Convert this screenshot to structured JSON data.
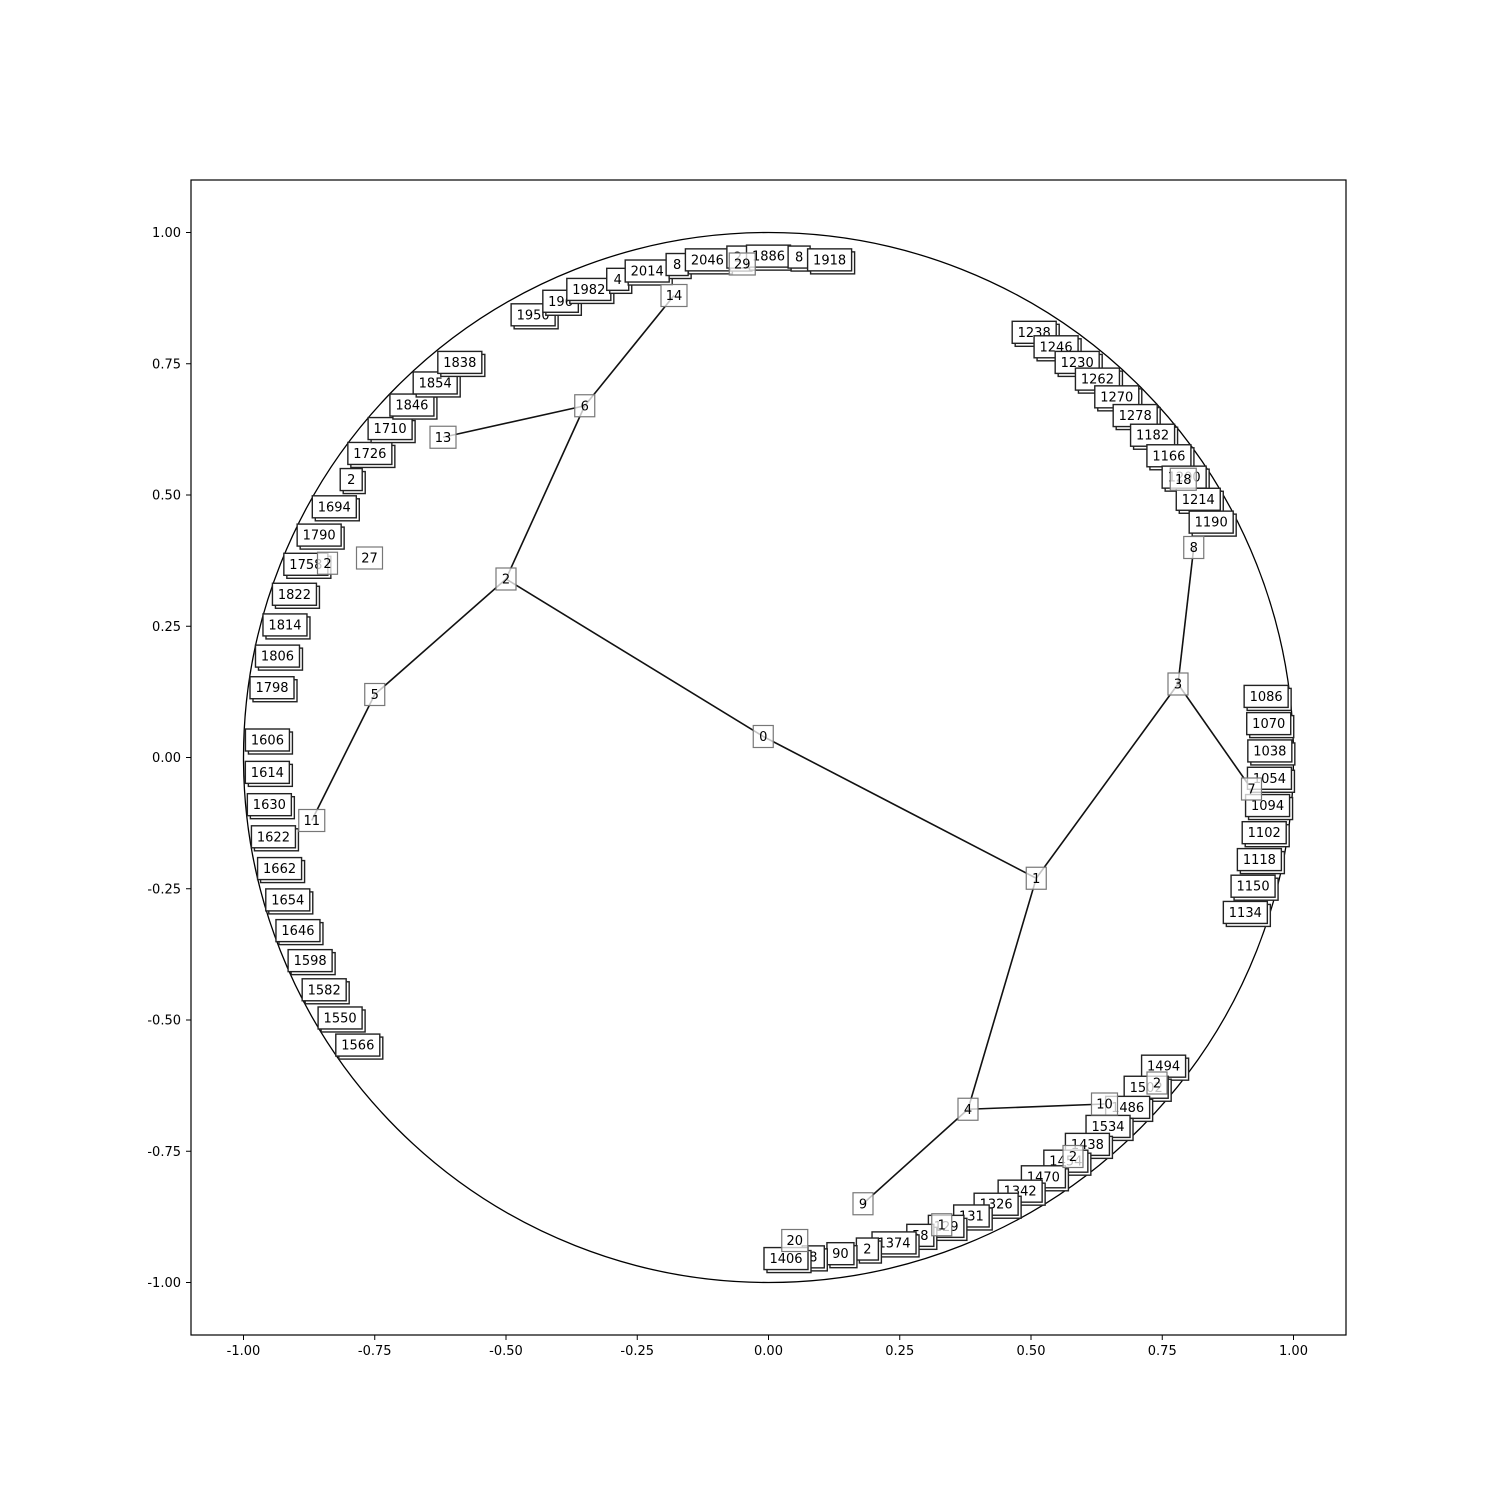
{
  "chart_data": {
    "type": "network",
    "title": "",
    "xlabel": "",
    "ylabel": "",
    "xlim": [
      -1.1,
      1.1
    ],
    "ylim": [
      -1.1,
      1.1
    ],
    "x_ticks": [
      "-1.00",
      "-0.75",
      "-0.50",
      "-0.25",
      "0.00",
      "0.25",
      "0.50",
      "0.75",
      "1.00"
    ],
    "y_ticks": [
      "1.00",
      "0.75",
      "0.50",
      "0.25",
      "0.00",
      "-0.25",
      "-0.50",
      "-0.75",
      "-1.00"
    ],
    "boundary_circle": {
      "center": [
        0,
        0
      ],
      "radius": 1.0
    },
    "internal_nodes": [
      {
        "label": "0",
        "x": -0.01,
        "y": 0.04
      },
      {
        "label": "1",
        "x": 0.51,
        "y": -0.23
      },
      {
        "label": "2",
        "x": -0.5,
        "y": 0.34
      },
      {
        "label": "3",
        "x": 0.78,
        "y": 0.14
      },
      {
        "label": "4",
        "x": 0.38,
        "y": -0.67
      },
      {
        "label": "5",
        "x": -0.75,
        "y": 0.12
      },
      {
        "label": "6",
        "x": -0.35,
        "y": 0.67
      },
      {
        "label": "7",
        "x": 0.92,
        "y": -0.06
      },
      {
        "label": "8",
        "x": 0.81,
        "y": 0.4
      },
      {
        "label": "9",
        "x": 0.18,
        "y": -0.85
      },
      {
        "label": "10",
        "x": 0.64,
        "y": -0.66
      },
      {
        "label": "11",
        "x": -0.87,
        "y": -0.12
      },
      {
        "label": "13",
        "x": -0.62,
        "y": 0.61
      },
      {
        "label": "14",
        "x": -0.18,
        "y": 0.88
      },
      {
        "label": "20",
        "x": 0.05,
        "y": -0.92
      },
      {
        "label": "27",
        "x": -0.76,
        "y": 0.38
      },
      {
        "label": "18",
        "x": 0.79,
        "y": 0.53
      },
      {
        "label": "2",
        "x": 0.74,
        "y": -0.62
      },
      {
        "label": "2",
        "x": 0.58,
        "y": -0.76
      },
      {
        "label": "2",
        "x": -0.84,
        "y": 0.37
      },
      {
        "label": "29",
        "x": -0.05,
        "y": 0.94
      },
      {
        "label": "1",
        "x": 0.33,
        "y": -0.89
      }
    ],
    "edges": [
      [
        "0",
        "1"
      ],
      [
        "0",
        "2"
      ],
      [
        "1",
        "3"
      ],
      [
        "1",
        "4"
      ],
      [
        "2",
        "5"
      ],
      [
        "2",
        "6"
      ],
      [
        "3",
        "7"
      ],
      [
        "3",
        "8"
      ],
      [
        "4",
        "9"
      ],
      [
        "4",
        "10"
      ],
      [
        "5",
        "11"
      ],
      [
        "6",
        "13"
      ],
      [
        "6",
        "14"
      ]
    ],
    "leaf_labels": [
      "1950",
      "196",
      "1982",
      "4",
      "2014",
      "8",
      "2046",
      "2",
      "1886",
      "8",
      "1918",
      "1798",
      "1806",
      "1814",
      "1822",
      "1758",
      "1790",
      "1694",
      "2",
      "1726",
      "1710",
      "1846",
      "1854",
      "1838",
      "1566",
      "1550",
      "1582",
      "1598",
      "1646",
      "1654",
      "1662",
      "1622",
      "1630",
      "1614",
      "1606",
      "1238",
      "1246",
      "1230",
      "1262",
      "1270",
      "1278",
      "1182",
      "1166",
      "1200",
      "1214",
      "1190",
      "1086",
      "1070",
      "1038",
      "1054",
      "1094",
      "1102",
      "1118",
      "1150",
      "1134",
      "1494",
      "1502",
      "1486",
      "1534",
      "1438",
      "1454",
      "1470",
      "1342",
      "1326",
      "131",
      "129",
      "58",
      "1374",
      "2",
      "90",
      "8",
      "1406"
    ]
  }
}
